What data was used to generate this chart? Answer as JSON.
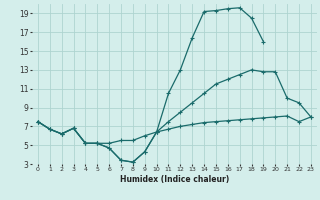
{
  "xlabel": "Humidex (Indice chaleur)",
  "bg_color": "#d4eeeb",
  "grid_color": "#aed4d0",
  "line_color": "#1a6b6b",
  "xlim": [
    -0.5,
    23.5
  ],
  "ylim": [
    3,
    20
  ],
  "xticks": [
    0,
    1,
    2,
    3,
    4,
    5,
    6,
    7,
    8,
    9,
    10,
    11,
    12,
    13,
    14,
    15,
    16,
    17,
    18,
    19,
    20,
    21,
    22,
    23
  ],
  "yticks": [
    3,
    5,
    7,
    9,
    11,
    13,
    15,
    17,
    19
  ],
  "line1_x": [
    0,
    1,
    2,
    3,
    4,
    5,
    6,
    7,
    8,
    9,
    10,
    11,
    12,
    13,
    14,
    15,
    16,
    17,
    18,
    19,
    20,
    21,
    22,
    23
  ],
  "line1_y": [
    7.5,
    6.7,
    6.2,
    6.8,
    5.2,
    5.2,
    4.7,
    3.4,
    3.2,
    4.3,
    6.4,
    10.5,
    13.0,
    16.4,
    19.2,
    19.3,
    19.5,
    19.6,
    18.5,
    16.0,
    null,
    null,
    null,
    null
  ],
  "line2_x": [
    0,
    1,
    2,
    3,
    4,
    5,
    6,
    7,
    8,
    9,
    10,
    11,
    12,
    13,
    14,
    15,
    16,
    17,
    18,
    19,
    20,
    21,
    22,
    23
  ],
  "line2_y": [
    7.5,
    6.7,
    6.2,
    6.8,
    5.2,
    5.2,
    4.7,
    3.4,
    3.2,
    4.3,
    6.4,
    7.5,
    8.5,
    9.5,
    10.5,
    11.5,
    12.0,
    12.5,
    13.0,
    12.8,
    12.8,
    10.0,
    9.5,
    8.0
  ],
  "line3_x": [
    0,
    1,
    2,
    3,
    4,
    5,
    6,
    7,
    8,
    9,
    10,
    11,
    12,
    13,
    14,
    15,
    16,
    17,
    18,
    19,
    20,
    21,
    22,
    23
  ],
  "line3_y": [
    7.5,
    6.7,
    6.2,
    6.8,
    5.2,
    5.2,
    5.2,
    5.5,
    5.5,
    6.0,
    6.4,
    6.7,
    7.0,
    7.2,
    7.4,
    7.5,
    7.6,
    7.7,
    7.8,
    7.9,
    8.0,
    8.1,
    7.5,
    8.0
  ]
}
